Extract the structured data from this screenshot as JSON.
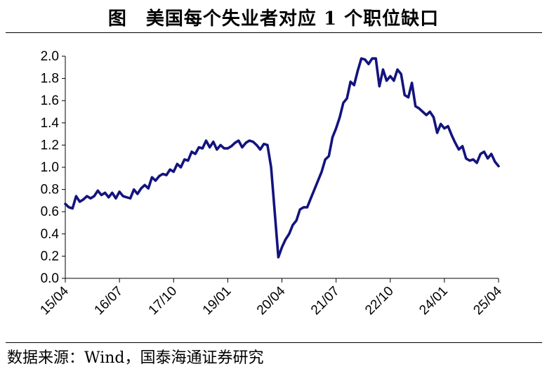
{
  "title": "图　美国每个失业者对应 1 个职位缺口",
  "source": "数据来源：Wind，国泰海通证券研究",
  "chart_data": {
    "type": "line",
    "title": "图　美国每个失业者对应 1 个职位缺口",
    "xlabel": "",
    "ylabel": "",
    "ylim": [
      0,
      2.0
    ],
    "yticks": [
      "0.0",
      "0.2",
      "0.4",
      "0.6",
      "0.8",
      "1.0",
      "1.2",
      "1.4",
      "1.6",
      "1.8",
      "2.0"
    ],
    "xtick_labels": [
      "15/04",
      "16/07",
      "17/10",
      "19/01",
      "20/04",
      "21/07",
      "22/10",
      "24/01",
      "25/04"
    ],
    "grid": false,
    "legend": "none",
    "line_color": "#13137F",
    "series": [
      {
        "x": [
          "15/04",
          "15/05",
          "15/06",
          "15/07",
          "15/08",
          "15/09",
          "15/10",
          "15/11",
          "15/12",
          "16/01",
          "16/02",
          "16/03",
          "16/04",
          "16/05",
          "16/06",
          "16/07",
          "16/08",
          "16/09",
          "16/10",
          "16/11",
          "16/12",
          "17/01",
          "17/02",
          "17/03",
          "17/04",
          "17/05",
          "17/06",
          "17/07",
          "17/08",
          "17/09",
          "17/10",
          "17/11",
          "17/12",
          "18/01",
          "18/02",
          "18/03",
          "18/04",
          "18/05",
          "18/06",
          "18/07",
          "18/08",
          "18/09",
          "18/10",
          "18/11",
          "18/12",
          "19/01",
          "19/02",
          "19/03",
          "19/04",
          "19/05",
          "19/06",
          "19/07",
          "19/08",
          "19/09",
          "19/10",
          "19/11",
          "19/12",
          "20/01",
          "20/02",
          "20/03",
          "20/04",
          "20/05",
          "20/06",
          "20/07",
          "20/08",
          "20/09",
          "20/10",
          "20/11",
          "20/12",
          "21/01",
          "21/02",
          "21/03",
          "21/04",
          "21/05",
          "21/06",
          "21/07",
          "21/08",
          "21/09",
          "21/10",
          "21/11",
          "21/12",
          "22/01",
          "22/02",
          "22/03",
          "22/04",
          "22/05",
          "22/06",
          "22/07",
          "22/08",
          "22/09",
          "22/10",
          "22/11",
          "22/12",
          "23/01",
          "23/02",
          "23/03",
          "23/04",
          "23/05",
          "23/06",
          "23/07",
          "23/08",
          "23/09",
          "23/10",
          "23/11",
          "23/12",
          "24/01",
          "24/02",
          "24/03",
          "24/04",
          "24/05",
          "24/06",
          "24/07",
          "24/08",
          "24/09",
          "24/10",
          "24/11",
          "24/12",
          "25/01",
          "25/02",
          "25/03",
          "25/04"
        ],
        "values": [
          0.67,
          0.64,
          0.63,
          0.74,
          0.69,
          0.71,
          0.74,
          0.72,
          0.74,
          0.79,
          0.75,
          0.77,
          0.73,
          0.77,
          0.72,
          0.78,
          0.74,
          0.73,
          0.72,
          0.8,
          0.76,
          0.81,
          0.84,
          0.81,
          0.91,
          0.88,
          0.92,
          0.94,
          0.93,
          0.98,
          0.96,
          1.03,
          1.0,
          1.07,
          1.06,
          1.14,
          1.12,
          1.18,
          1.17,
          1.24,
          1.18,
          1.23,
          1.16,
          1.2,
          1.17,
          1.17,
          1.19,
          1.22,
          1.24,
          1.18,
          1.22,
          1.24,
          1.23,
          1.2,
          1.16,
          1.21,
          1.2,
          1.0,
          0.6,
          0.19,
          0.28,
          0.35,
          0.4,
          0.48,
          0.52,
          0.62,
          0.64,
          0.64,
          0.72,
          0.8,
          0.88,
          0.96,
          1.07,
          1.1,
          1.27,
          1.35,
          1.45,
          1.58,
          1.62,
          1.77,
          1.74,
          1.87,
          1.98,
          1.97,
          1.93,
          1.98,
          1.98,
          1.73,
          1.88,
          1.78,
          1.82,
          1.78,
          1.88,
          1.84,
          1.65,
          1.63,
          1.76,
          1.55,
          1.53,
          1.5,
          1.47,
          1.5,
          1.45,
          1.31,
          1.39,
          1.35,
          1.37,
          1.29,
          1.22,
          1.16,
          1.19,
          1.08,
          1.06,
          1.07,
          1.04,
          1.12,
          1.14,
          1.08,
          1.12,
          1.05,
          1.01
        ]
      }
    ]
  }
}
